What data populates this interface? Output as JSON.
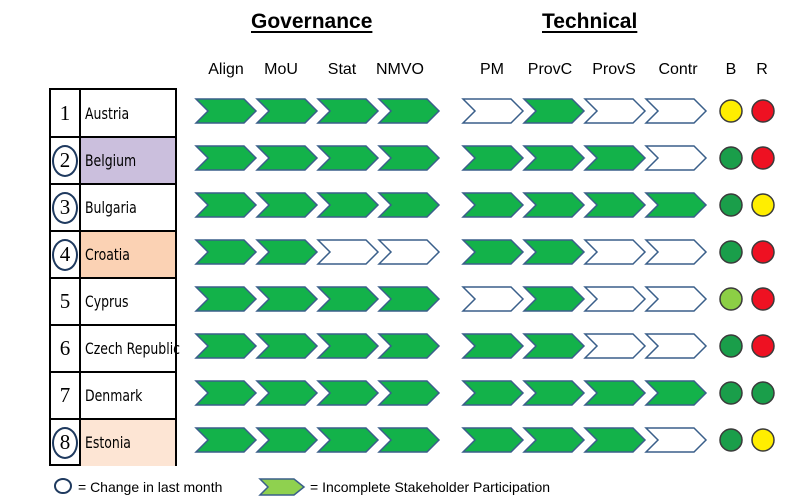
{
  "headings": {
    "governance": "Governance",
    "technical": "Technical"
  },
  "columns": [
    "Align",
    "MoU",
    "Stat",
    "NMVO",
    "PM",
    "ProvC",
    "ProvS",
    "Contr",
    "B",
    "R"
  ],
  "colors": {
    "complete": "#13b24a",
    "incomplete": "#ffffff",
    "partial": "#8fd14f",
    "outline": "#3a5f8a",
    "green": "#1a9e4a",
    "lightgreen": "#8ccf45",
    "yellow": "#ffee00",
    "red": "#ee1122",
    "row_highlight_purple": "#cbbfdd",
    "row_highlight_orange": "#fbd2b4",
    "row_highlight_light": "#fde5d4"
  },
  "rows": [
    {
      "num": "1",
      "country": "Austria",
      "changed": false,
      "highlight": "",
      "gov": [
        "complete",
        "complete",
        "complete",
        "complete"
      ],
      "tech": [
        "incomplete",
        "complete",
        "incomplete",
        "incomplete"
      ],
      "B": "yellow",
      "R": "red"
    },
    {
      "num": "2",
      "country": "Belgium",
      "changed": true,
      "highlight": "row_highlight_purple",
      "gov": [
        "complete",
        "complete",
        "complete",
        "complete"
      ],
      "tech": [
        "complete",
        "complete",
        "complete",
        "incomplete"
      ],
      "B": "green",
      "R": "red"
    },
    {
      "num": "3",
      "country": "Bulgaria",
      "changed": true,
      "highlight": "",
      "gov": [
        "complete",
        "complete",
        "complete",
        "complete"
      ],
      "tech": [
        "complete",
        "complete",
        "complete",
        "complete"
      ],
      "B": "green",
      "R": "yellow"
    },
    {
      "num": "4",
      "country": "Croatia",
      "changed": true,
      "highlight": "row_highlight_orange",
      "gov": [
        "complete",
        "complete",
        "incomplete",
        "incomplete"
      ],
      "tech": [
        "complete",
        "complete",
        "incomplete",
        "incomplete"
      ],
      "B": "green",
      "R": "red"
    },
    {
      "num": "5",
      "country": "Cyprus",
      "changed": false,
      "highlight": "",
      "gov": [
        "complete",
        "complete",
        "complete",
        "complete"
      ],
      "tech": [
        "incomplete",
        "complete",
        "incomplete",
        "incomplete"
      ],
      "B": "lightgreen",
      "R": "red"
    },
    {
      "num": "6",
      "country": "Czech Republic",
      "changed": false,
      "highlight": "",
      "gov": [
        "complete",
        "complete",
        "complete",
        "complete"
      ],
      "tech": [
        "complete",
        "complete",
        "incomplete",
        "incomplete"
      ],
      "B": "green",
      "R": "red"
    },
    {
      "num": "7",
      "country": "Denmark",
      "changed": false,
      "highlight": "",
      "gov": [
        "complete",
        "complete",
        "complete",
        "complete"
      ],
      "tech": [
        "complete",
        "complete",
        "complete",
        "complete"
      ],
      "B": "green",
      "R": "green"
    },
    {
      "num": "8",
      "country": "Estonia",
      "changed": true,
      "highlight": "row_highlight_light",
      "gov": [
        "complete",
        "complete",
        "complete",
        "complete"
      ],
      "tech": [
        "complete",
        "complete",
        "complete",
        "incomplete"
      ],
      "B": "green",
      "R": "yellow"
    }
  ],
  "legend": {
    "change": "= Change in last month",
    "incomplete": "= Incomplete Stakeholder Participation"
  }
}
